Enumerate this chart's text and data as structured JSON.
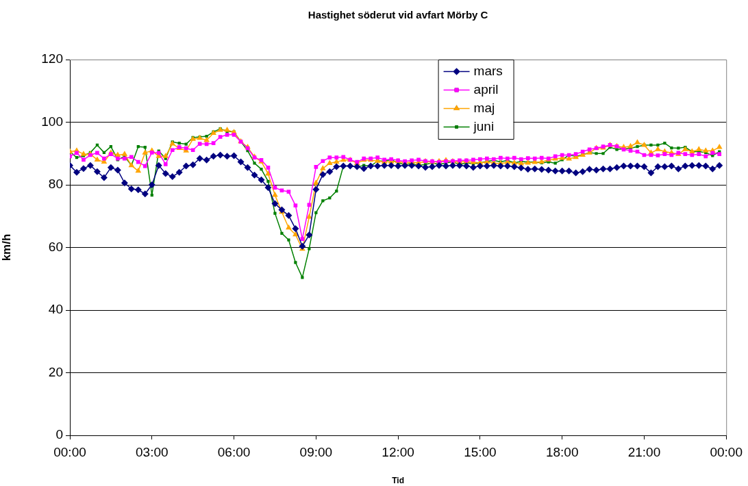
{
  "chart_data": {
    "type": "line",
    "title": "Hastighet söderut vid avfart Mörby C",
    "xlabel": "Tid",
    "ylabel": "km/h",
    "x": [
      0,
      0.25,
      0.5,
      0.75,
      1,
      1.25,
      1.5,
      1.75,
      2,
      2.25,
      2.5,
      2.75,
      3,
      3.25,
      3.5,
      3.75,
      4,
      4.25,
      4.5,
      4.75,
      5,
      5.25,
      5.5,
      5.75,
      6,
      6.25,
      6.5,
      6.75,
      7,
      7.25,
      7.5,
      7.75,
      8,
      8.25,
      8.5,
      8.75,
      9,
      9.25,
      9.5,
      9.75,
      10,
      10.25,
      10.5,
      10.75,
      11,
      11.25,
      11.5,
      11.75,
      12,
      12.25,
      12.5,
      12.75,
      13,
      13.25,
      13.5,
      13.75,
      14,
      14.25,
      14.5,
      14.75,
      15,
      15.25,
      15.5,
      15.75,
      16,
      16.25,
      16.5,
      16.75,
      17,
      17.25,
      17.5,
      17.75,
      18,
      18.25,
      18.5,
      18.75,
      19,
      19.25,
      19.5,
      19.75,
      20,
      20.25,
      20.5,
      20.75,
      21,
      21.25,
      21.5,
      21.75,
      22,
      22.25,
      22.5,
      22.75,
      23,
      23.25,
      23.5,
      23.75
    ],
    "xlim": [
      0,
      24
    ],
    "xticks": [
      {
        "value": 0,
        "label": "00:00"
      },
      {
        "value": 3,
        "label": "03:00"
      },
      {
        "value": 6,
        "label": "06:00"
      },
      {
        "value": 9,
        "label": "09:00"
      },
      {
        "value": 12,
        "label": "12:00"
      },
      {
        "value": 15,
        "label": "15:00"
      },
      {
        "value": 18,
        "label": "18:00"
      },
      {
        "value": 21,
        "label": "21:00"
      },
      {
        "value": 24,
        "label": "00:00"
      }
    ],
    "ylim": [
      0,
      120
    ],
    "yticks": [
      0,
      20,
      40,
      60,
      80,
      100,
      120
    ],
    "grid": "y",
    "legend": "top",
    "series": [
      {
        "name": "mars",
        "color": "#000080",
        "marker": "diamond",
        "values": [
          86.2,
          84.0,
          85.2,
          86.2,
          84.2,
          82.3,
          85.5,
          84.7,
          80.6,
          78.7,
          78.4,
          77.1,
          80.0,
          86.2,
          83.6,
          82.6,
          84.0,
          86.0,
          86.4,
          88.4,
          87.9,
          89.1,
          89.5,
          89.1,
          89.3,
          87.3,
          85.5,
          83.1,
          81.6,
          79.1,
          74.0,
          72.0,
          70.2,
          66.0,
          60.4,
          64.0,
          78.5,
          83.3,
          84.2,
          85.8,
          86.0,
          86.0,
          85.8,
          85.2,
          86.0,
          86.0,
          86.2,
          86.2,
          86.0,
          86.2,
          86.2,
          86.0,
          85.6,
          85.8,
          86.2,
          86.0,
          86.2,
          86.2,
          86.0,
          85.6,
          86.0,
          86.0,
          86.2,
          86.0,
          86.0,
          85.8,
          85.4,
          85.0,
          85.1,
          84.9,
          84.7,
          84.4,
          84.4,
          84.4,
          83.8,
          84.2,
          85.0,
          84.7,
          85.1,
          85.1,
          85.5,
          86.0,
          86.0,
          86.0,
          85.8,
          83.8,
          85.8,
          85.8,
          86.0,
          85.1,
          86.0,
          86.2,
          86.2,
          86.0,
          85.1,
          86.2
        ]
      },
      {
        "name": "april",
        "color": "#ff00ff",
        "marker": "square",
        "values": [
          89.1,
          90.2,
          88.0,
          89.5,
          90.2,
          88.4,
          89.8,
          88.4,
          88.4,
          88.9,
          87.3,
          86.0,
          90.3,
          90.2,
          86.6,
          91.1,
          92.0,
          91.7,
          91.1,
          93.1,
          93.0,
          93.3,
          95.3,
          96.0,
          96.0,
          93.8,
          91.7,
          88.7,
          87.9,
          85.5,
          79.1,
          78.2,
          77.8,
          73.4,
          62.7,
          73.6,
          85.7,
          87.6,
          88.7,
          88.7,
          88.9,
          88.0,
          87.3,
          88.4,
          88.4,
          88.7,
          88.0,
          88.2,
          87.8,
          87.5,
          87.8,
          88.0,
          87.6,
          87.5,
          87.3,
          87.5,
          87.6,
          87.8,
          87.8,
          88.0,
          88.2,
          88.4,
          88.2,
          88.6,
          88.4,
          88.6,
          88.2,
          88.5,
          88.4,
          88.6,
          88.4,
          89.1,
          89.5,
          89.5,
          89.8,
          90.6,
          91.3,
          91.7,
          92.2,
          92.7,
          92.3,
          91.3,
          90.9,
          90.6,
          89.5,
          89.5,
          89.4,
          89.8,
          89.5,
          90.2,
          89.8,
          89.5,
          89.8,
          89.1,
          90.2,
          89.8
        ]
      },
      {
        "name": "maj",
        "color": "#ffa500",
        "marker": "triangle",
        "values": [
          90.6,
          90.9,
          89.8,
          89.8,
          88.0,
          87.3,
          90.2,
          89.5,
          89.8,
          86.2,
          84.4,
          90.2,
          90.9,
          89.1,
          89.1,
          93.1,
          91.7,
          90.9,
          94.6,
          94.9,
          94.2,
          96.5,
          97.5,
          97.5,
          96.8,
          93.8,
          92.0,
          88.9,
          87.4,
          83.5,
          76.7,
          71.3,
          66.3,
          64.1,
          59.5,
          69.7,
          80.6,
          85.2,
          86.9,
          87.3,
          87.9,
          87.9,
          86.9,
          87.9,
          87.9,
          87.6,
          87.3,
          87.4,
          87.5,
          87.0,
          87.3,
          87.0,
          87.5,
          87.3,
          87.5,
          87.8,
          87.5,
          87.3,
          87.5,
          87.2,
          87.0,
          87.3,
          87.0,
          86.8,
          87.2,
          87.0,
          86.8,
          87.0,
          87.2,
          87.3,
          88.0,
          88.3,
          88.5,
          88.3,
          88.8,
          89.5,
          90.2,
          91.7,
          91.8,
          92.7,
          92.3,
          92.0,
          92.3,
          93.5,
          92.7,
          90.2,
          91.3,
          90.6,
          90.2,
          89.8,
          91.3,
          90.6,
          91.3,
          90.9,
          90.9,
          92.0
        ]
      },
      {
        "name": "juni",
        "color": "#008000",
        "marker": "square",
        "values": [
          90.6,
          88.7,
          89.3,
          90.3,
          92.7,
          90.3,
          92.2,
          88.0,
          89.1,
          86.2,
          92.2,
          92.0,
          76.7,
          90.8,
          88.4,
          93.7,
          93.3,
          93.0,
          95.1,
          95.3,
          95.5,
          96.9,
          97.9,
          97.1,
          96.9,
          93.8,
          90.9,
          86.9,
          85.0,
          81.1,
          70.9,
          64.5,
          62.4,
          55.2,
          50.4,
          59.6,
          71.1,
          74.9,
          75.8,
          78.0,
          86.0,
          86.0,
          85.7,
          86.2,
          86.0,
          87.6,
          87.6,
          88.0,
          87.0,
          86.5,
          86.8,
          86.2,
          86.5,
          87.0,
          86.5,
          87.0,
          87.3,
          86.5,
          87.0,
          86.8,
          87.0,
          87.5,
          87.8,
          87.3,
          87.8,
          87.0,
          87.5,
          87.2,
          87.3,
          87.0,
          87.3,
          86.9,
          88.0,
          89.5,
          89.1,
          89.6,
          90.3,
          90.0,
          90.0,
          92.0,
          91.3,
          91.5,
          91.7,
          92.2,
          92.7,
          92.7,
          92.7,
          93.3,
          91.8,
          91.7,
          92.0,
          90.6,
          90.6,
          90.3,
          89.3,
          90.6
        ]
      }
    ]
  }
}
